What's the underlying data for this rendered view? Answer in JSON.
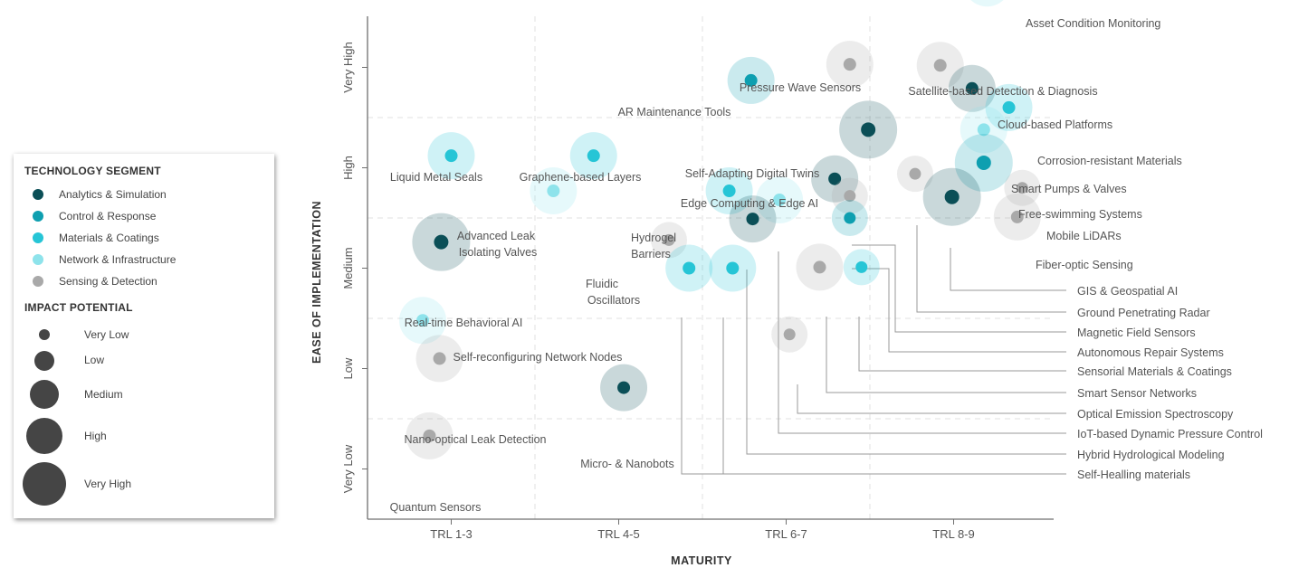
{
  "chart_data": {
    "type": "scatter",
    "subtype": "bubble",
    "xlabel": "MATURITY",
    "ylabel": "EASE OF IMPLEMENTATION",
    "x_categories": [
      "TRL 1-3",
      "TRL 4-5",
      "TRL 6-7",
      "TRL 8-9"
    ],
    "y_categories": [
      "Very Low",
      "Low",
      "Medium",
      "High",
      "Very High"
    ],
    "xlim": [
      0.5,
      4.5
    ],
    "ylim": [
      0.5,
      5.9
    ],
    "grid": true,
    "legend": {
      "placement": "left",
      "segment_title": "TECHNOLOGY SEGMENT",
      "impact_title": "IMPACT POTENTIAL",
      "segments": [
        {
          "name": "Analytics & Simulation",
          "color": "#0b4f57"
        },
        {
          "name": "Control & Response",
          "color": "#0e9fb0"
        },
        {
          "name": "Materials & Coatings",
          "color": "#26c5d6"
        },
        {
          "name": "Network & Infrastructure",
          "color": "#8ee3eb"
        },
        {
          "name": "Sensing & Detection",
          "color": "#a9a9a9"
        }
      ],
      "impact_levels": [
        "Very Low",
        "Low",
        "Medium",
        "High",
        "Very High"
      ]
    },
    "points": [
      {
        "label": "Asset Condition Monitoring",
        "segment": "Network & Infrastructure",
        "maturity": 4.2,
        "ease": 5.84,
        "impact": 2
      },
      {
        "label": "Pressure Wave Sensors",
        "segment": "Sensing & Detection",
        "maturity": 3.38,
        "ease": 5.03,
        "impact": 2
      },
      {
        "label": "Satellite-based Detection & Diagnosis",
        "segment": "Sensing & Detection",
        "maturity": 3.92,
        "ease": 5.02,
        "impact": 2
      },
      {
        "label": "AR Maintenance Tools",
        "segment": "Control & Response",
        "maturity": 2.79,
        "ease": 4.87,
        "impact": 2
      },
      {
        "label": "Cloud-based Platforms",
        "segment": "Analytics & Simulation",
        "maturity": 4.11,
        "ease": 4.79,
        "impact": 2
      },
      {
        "label": "Corrosion-resistant Materials",
        "segment": "Materials & Coatings",
        "maturity": 4.33,
        "ease": 4.6,
        "impact": 2
      },
      {
        "label": "Self-Adapting Digital Twins",
        "segment": "Analytics & Simulation",
        "maturity": 3.49,
        "ease": 4.38,
        "impact": 3
      },
      {
        "label": "Smart Pumps & Valves",
        "segment": "Network & Infrastructure",
        "maturity": 4.18,
        "ease": 4.38,
        "impact": 2
      },
      {
        "label": "Liquid Metal Seals",
        "segment": "Materials & Coatings",
        "maturity": 1.0,
        "ease": 4.12,
        "impact": 2
      },
      {
        "label": "Graphene-based Layers",
        "segment": "Materials & Coatings",
        "maturity": 1.85,
        "ease": 4.12,
        "impact": 2
      },
      {
        "label": "Free-swimming Systems",
        "segment": "Control & Response",
        "maturity": 4.18,
        "ease": 4.05,
        "impact": 3
      },
      {
        "label": "Ground Penetrating Radar",
        "segment": "Sensing & Detection",
        "maturity": 3.77,
        "ease": 3.94,
        "impact": 1
      },
      {
        "label": "Edge Computing & Edge AI",
        "segment": "Analytics & Simulation",
        "maturity": 3.29,
        "ease": 3.89,
        "impact": 2
      },
      {
        "label": "Mobile LiDARs",
        "segment": "Sensing & Detection",
        "maturity": 4.41,
        "ease": 3.8,
        "impact": 1
      },
      {
        "label": "Advanced Leak Isolating Valves",
        "segment": "Network & Infrastructure",
        "maturity": 1.61,
        "ease": 3.77,
        "impact": 2
      },
      {
        "label": "Hydrogel Barriers",
        "segment": "Materials & Coatings",
        "maturity": 2.66,
        "ease": 3.77,
        "impact": 2
      },
      {
        "label": "Magnetic Field Sensors",
        "segment": "Sensing & Detection",
        "maturity": 3.38,
        "ease": 3.72,
        "impact": 1
      },
      {
        "label": "GIS & Geospatial AI",
        "segment": "Analytics & Simulation",
        "maturity": 3.99,
        "ease": 3.71,
        "impact": 3
      },
      {
        "label": "IoT-based Dynamic Pressure Control",
        "segment": "Network & Infrastructure",
        "maturity": 2.96,
        "ease": 3.68,
        "impact": 2
      },
      {
        "label": "Fiber-optic Sensing",
        "segment": "Sensing & Detection",
        "maturity": 4.38,
        "ease": 3.51,
        "impact": 2
      },
      {
        "label": "Hybrid Hydrological Modeling",
        "segment": "Analytics & Simulation",
        "maturity": 2.8,
        "ease": 3.49,
        "impact": 2
      },
      {
        "label": "Autonomous Repair Systems",
        "segment": "Control & Response",
        "maturity": 3.38,
        "ease": 3.5,
        "impact": 1
      },
      {
        "label": "Fluidic Oscillators",
        "segment": "Sensing & Detection",
        "maturity": 2.3,
        "ease": 3.28,
        "impact": 1
      },
      {
        "label": "Real-time Behavioral AI",
        "segment": "Analytics & Simulation",
        "maturity": 0.94,
        "ease": 3.26,
        "impact": 3
      },
      {
        "label": "Self-Healling materials (1)",
        "segment": "Materials & Coatings",
        "maturity": 2.42,
        "ease": 3.0,
        "impact": 2
      },
      {
        "label": "Self-Healling materials (2)",
        "segment": "Materials & Coatings",
        "maturity": 2.68,
        "ease": 3.0,
        "impact": 2
      },
      {
        "label": "Smart Sensor Networks",
        "segment": "Sensing & Detection",
        "maturity": 3.2,
        "ease": 3.01,
        "impact": 2
      },
      {
        "label": "Sensorial Materials & Coatings",
        "segment": "Materials & Coatings",
        "maturity": 3.45,
        "ease": 3.01,
        "impact": 1
      },
      {
        "label": "Self-reconfiguring Network Nodes",
        "segment": "Network & Infrastructure",
        "maturity": 0.83,
        "ease": 2.48,
        "impact": 2
      },
      {
        "label": "Optical Emission Spectroscopy",
        "segment": "Sensing & Detection",
        "maturity": 3.02,
        "ease": 2.34,
        "impact": 1
      },
      {
        "label": "Nano-optical Leak Detection",
        "segment": "Sensing & Detection",
        "maturity": 0.93,
        "ease": 2.1,
        "impact": 2
      },
      {
        "label": "Micro- & Nanobots",
        "segment": "Analytics & Simulation",
        "maturity": 2.03,
        "ease": 1.81,
        "impact": 2
      },
      {
        "label": "Quantum Sensors",
        "segment": "Sensing & Detection",
        "maturity": 0.87,
        "ease": 1.33,
        "impact": 2
      }
    ],
    "point_labels": [
      "Asset Condition Monitoring",
      "Pressure Wave Sensors",
      "Satellite-based Detection & Diagnosis",
      "AR Maintenance Tools",
      "Cloud-based Platforms",
      "Corrosion-resistant Materials",
      "Self-Adapting Digital Twins",
      "Smart Pumps & Valves",
      "Liquid Metal Seals",
      "Graphene-based Layers",
      "Free-swimming Systems",
      "Edge Computing & Edge AI",
      "Mobile LiDARs",
      "Advanced Leak",
      "Isolating Valves",
      "Hydrogel",
      "Barriers",
      "Fiber-optic Sensing",
      "Fluidic",
      "Oscillators",
      "Real-time Behavioral AI",
      "Self-reconfiguring Network Nodes",
      "Nano-optical Leak Detection",
      "Micro- & Nanobots",
      "Quantum Sensors"
    ],
    "callout_labels": [
      "GIS & Geospatial AI",
      "Ground Penetrating Radar",
      "Magnetic Field Sensors",
      "Autonomous Repair Systems",
      "Sensorial Materials & Coatings",
      "Smart Sensor Networks",
      "Optical Emission Spectroscopy",
      "IoT-based Dynamic Pressure Control",
      "Hybrid Hydrological Modeling",
      "Self-Healling materials"
    ]
  }
}
